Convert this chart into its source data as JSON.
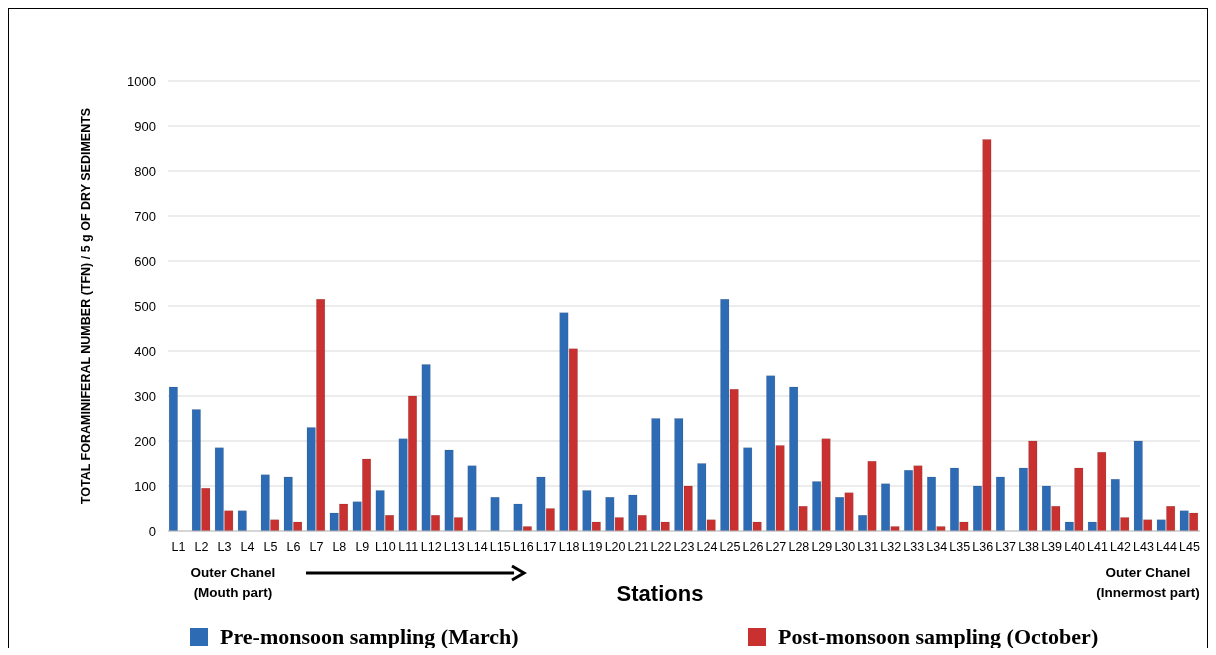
{
  "chart_data": {
    "type": "bar",
    "xlabel": "Stations",
    "ylabel": "TOTAL FORAMINIFERAL NUMBER  (TFN) / 5 g OF DRY SEDIMENTS",
    "categories": [
      "L1",
      "L2",
      "L3",
      "L4",
      "L5",
      "L6",
      "L7",
      "L8",
      "L9",
      "L10",
      "L11",
      "L12",
      "L13",
      "L14",
      "L15",
      "L16",
      "L17",
      "L18",
      "L19",
      "L20",
      "L21",
      "L22",
      "L23",
      "L24",
      "L25",
      "L26",
      "L27",
      "L28",
      "L29",
      "L30",
      "L31",
      "L32",
      "L33",
      "L34",
      "L35",
      "L36",
      "L37",
      "L38",
      "L39",
      "L40",
      "L41",
      "L42",
      "L43",
      "L44",
      "L45"
    ],
    "series": [
      {
        "name": "Pre-monsoon sampling (March)",
        "color": "#2e6bb5",
        "values": [
          320,
          270,
          185,
          45,
          125,
          120,
          230,
          40,
          65,
          90,
          205,
          370,
          180,
          145,
          75,
          60,
          120,
          485,
          90,
          75,
          80,
          250,
          250,
          150,
          515,
          185,
          345,
          320,
          110,
          75,
          35,
          105,
          135,
          120,
          140,
          100,
          120,
          140,
          100,
          20,
          20,
          115,
          200,
          25,
          45
        ]
      },
      {
        "name": "Post-monsoon sampling (October)",
        "color": "#c8312f",
        "values": [
          null,
          95,
          45,
          null,
          25,
          20,
          515,
          60,
          160,
          35,
          300,
          35,
          30,
          null,
          null,
          10,
          50,
          405,
          20,
          30,
          35,
          20,
          100,
          25,
          315,
          20,
          190,
          55,
          205,
          85,
          155,
          10,
          145,
          10,
          20,
          870,
          null,
          200,
          55,
          140,
          175,
          30,
          25,
          55,
          40
        ]
      }
    ],
    "ylim": [
      0,
      1000
    ],
    "yticks": [
      0,
      100,
      200,
      300,
      400,
      500,
      600,
      700,
      800,
      900,
      1000
    ],
    "grid": "y",
    "legend": "bottom",
    "annotations": [
      "Outer Chanel\n(Mouth part)",
      "Outer Chanel\n(Innermost part)"
    ]
  }
}
